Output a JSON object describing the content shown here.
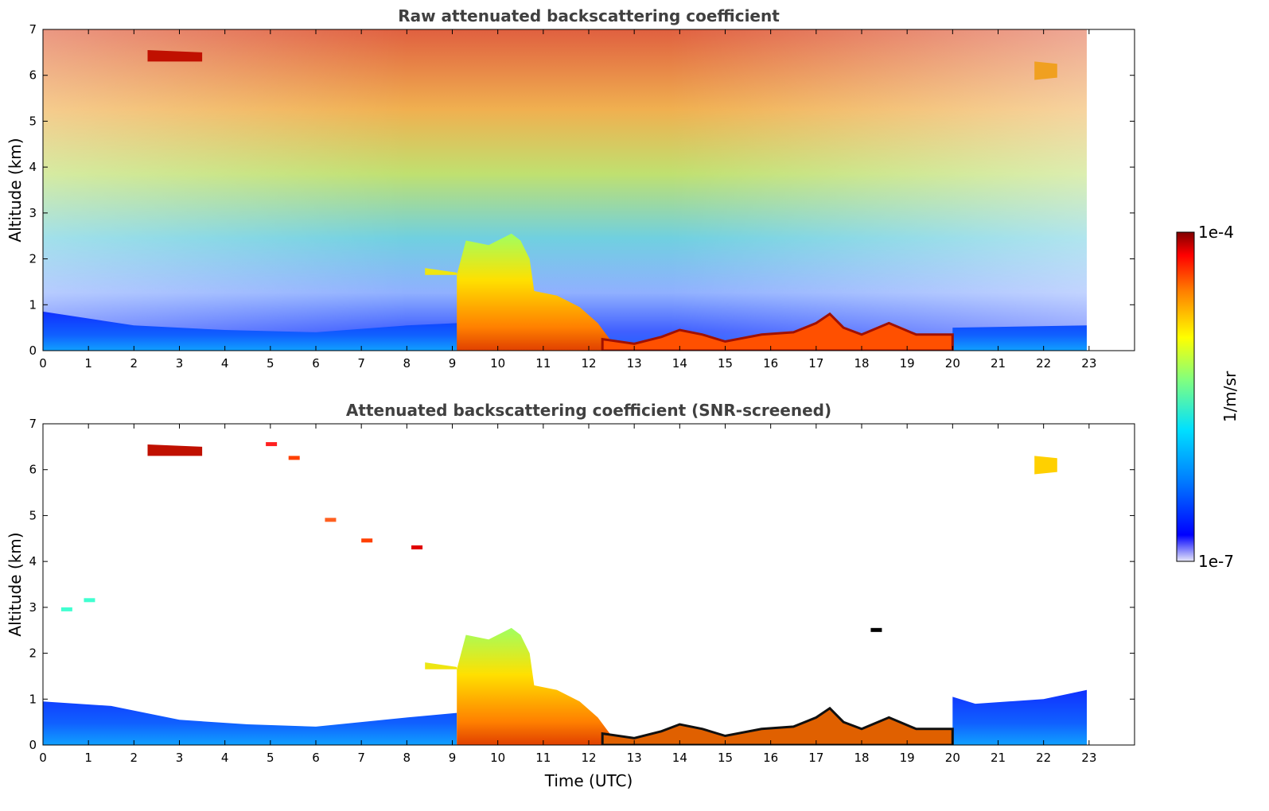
{
  "chart_data": [
    {
      "type": "heatmap",
      "title": "Raw attenuated backscattering coefficient",
      "xlabel": "",
      "ylabel": "Altitude (km)",
      "xlim": [
        0,
        24
      ],
      "ylim": [
        0,
        7
      ],
      "xticks": [
        "0",
        "1",
        "2",
        "3",
        "4",
        "5",
        "6",
        "7",
        "8",
        "9",
        "10",
        "11",
        "12",
        "13",
        "14",
        "15",
        "16",
        "17",
        "18",
        "19",
        "20",
        "21",
        "22",
        "23"
      ],
      "yticks": [
        "0",
        "1",
        "2",
        "3",
        "4",
        "5",
        "6",
        "7"
      ],
      "data_end_hour": 22.95,
      "features": [
        {
          "kind": "boundary_layer",
          "x0": 0,
          "x1": 22.95,
          "top_km": 0.6
        },
        {
          "kind": "cloud_base",
          "x0": 9.1,
          "x1": 12.3,
          "top_km": 2.5
        },
        {
          "kind": "low_cloud_layer",
          "x0": 12.3,
          "x1": 20.0,
          "height_km": 0.35
        },
        {
          "kind": "cirrus",
          "x0": 2.3,
          "x1": 3.5,
          "height_km": 6.4
        },
        {
          "kind": "cirrus",
          "x0": 21.5,
          "x1": 22.9,
          "height_km": 6.1
        }
      ]
    },
    {
      "type": "heatmap",
      "title": "Attenuated backscattering coefficient (SNR-screened)",
      "xlabel": "Time (UTC)",
      "ylabel": "Altitude (km)",
      "xlim": [
        0,
        24
      ],
      "ylim": [
        0,
        7
      ],
      "xticks": [
        "0",
        "1",
        "2",
        "3",
        "4",
        "5",
        "6",
        "7",
        "8",
        "9",
        "10",
        "11",
        "12",
        "13",
        "14",
        "15",
        "16",
        "17",
        "18",
        "19",
        "20",
        "21",
        "22",
        "23"
      ],
      "yticks": [
        "0",
        "1",
        "2",
        "3",
        "4",
        "5",
        "6",
        "7"
      ],
      "data_end_hour": 22.95,
      "features": [
        {
          "kind": "boundary_layer",
          "x0": 0,
          "x1": 22.95,
          "top_km": 0.9
        },
        {
          "kind": "cloud_base",
          "x0": 9.1,
          "x1": 12.3,
          "top_km": 2.5
        },
        {
          "kind": "low_cloud_layer",
          "x0": 12.3,
          "x1": 20.0,
          "height_km": 0.35
        },
        {
          "kind": "cirrus",
          "x0": 2.3,
          "x1": 3.5,
          "height_km": 6.4
        },
        {
          "kind": "cirrus",
          "x0": 21.5,
          "x1": 22.9,
          "height_km": 6.1
        }
      ]
    }
  ],
  "colorbar": {
    "max_label": "1e-4",
    "min_label": "1e-7",
    "unit_label": "1/m/sr",
    "colormap": [
      "#e8e8f8",
      "#0000ff",
      "#0080ff",
      "#00ffff",
      "#80ff80",
      "#ffff00",
      "#ff8000",
      "#ff0000",
      "#800000"
    ]
  }
}
